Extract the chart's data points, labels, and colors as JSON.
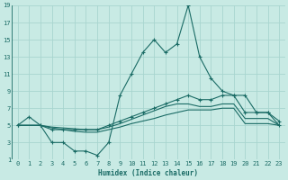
{
  "xlabel": "Humidex (Indice chaleur)",
  "xlim": [
    -0.5,
    23.5
  ],
  "ylim": [
    1,
    19
  ],
  "xticks": [
    0,
    1,
    2,
    3,
    4,
    5,
    6,
    7,
    8,
    9,
    10,
    11,
    12,
    13,
    14,
    15,
    16,
    17,
    18,
    19,
    20,
    21,
    22,
    23
  ],
  "yticks": [
    1,
    3,
    5,
    7,
    9,
    11,
    13,
    15,
    17,
    19
  ],
  "bg_color": "#c8eae4",
  "grid_color": "#a8d5cf",
  "line_color": "#1a6b65",
  "lines": [
    {
      "x": [
        0,
        2,
        3,
        4,
        5,
        6,
        7,
        8,
        9,
        10,
        11,
        12,
        13,
        14,
        15,
        16,
        17,
        18,
        19,
        20,
        21,
        22,
        23
      ],
      "y": [
        5,
        5,
        3,
        3,
        2,
        2,
        1.5,
        3,
        8.5,
        11,
        13.5,
        15,
        13.5,
        14.5,
        19,
        13,
        10.5,
        9,
        8.5,
        8.5,
        6.5,
        6.5,
        5
      ],
      "marker": true
    },
    {
      "x": [
        0,
        1,
        2,
        3,
        4,
        5,
        6,
        7,
        8,
        9,
        10,
        11,
        12,
        13,
        14,
        15,
        16,
        17,
        18,
        19,
        20,
        21,
        22,
        23
      ],
      "y": [
        5,
        6,
        5,
        4.5,
        4.5,
        4.5,
        4.5,
        4.5,
        5,
        5.5,
        6,
        6.5,
        7,
        7.5,
        8,
        8.5,
        8,
        8,
        8.5,
        8.5,
        6.5,
        6.5,
        6.5,
        5.5
      ],
      "marker": true
    },
    {
      "x": [
        0,
        1,
        2,
        3,
        4,
        5,
        6,
        7,
        8,
        9,
        10,
        11,
        12,
        13,
        14,
        15,
        16,
        17,
        18,
        19,
        20,
        21,
        22,
        23
      ],
      "y": [
        5,
        5,
        5,
        4.8,
        4.7,
        4.6,
        4.5,
        4.5,
        4.8,
        5.2,
        5.7,
        6.2,
        6.7,
        7.2,
        7.5,
        7.5,
        7.2,
        7.2,
        7.5,
        7.5,
        5.8,
        5.8,
        5.8,
        5
      ],
      "marker": false
    },
    {
      "x": [
        0,
        1,
        2,
        3,
        4,
        5,
        6,
        7,
        8,
        9,
        10,
        11,
        12,
        13,
        14,
        15,
        16,
        17,
        18,
        19,
        20,
        21,
        22,
        23
      ],
      "y": [
        5,
        5,
        5,
        4.7,
        4.5,
        4.3,
        4.2,
        4.2,
        4.5,
        4.8,
        5.2,
        5.5,
        5.8,
        6.2,
        6.5,
        6.8,
        6.8,
        6.8,
        7,
        7,
        5.2,
        5.2,
        5.2,
        5
      ],
      "marker": false
    }
  ]
}
